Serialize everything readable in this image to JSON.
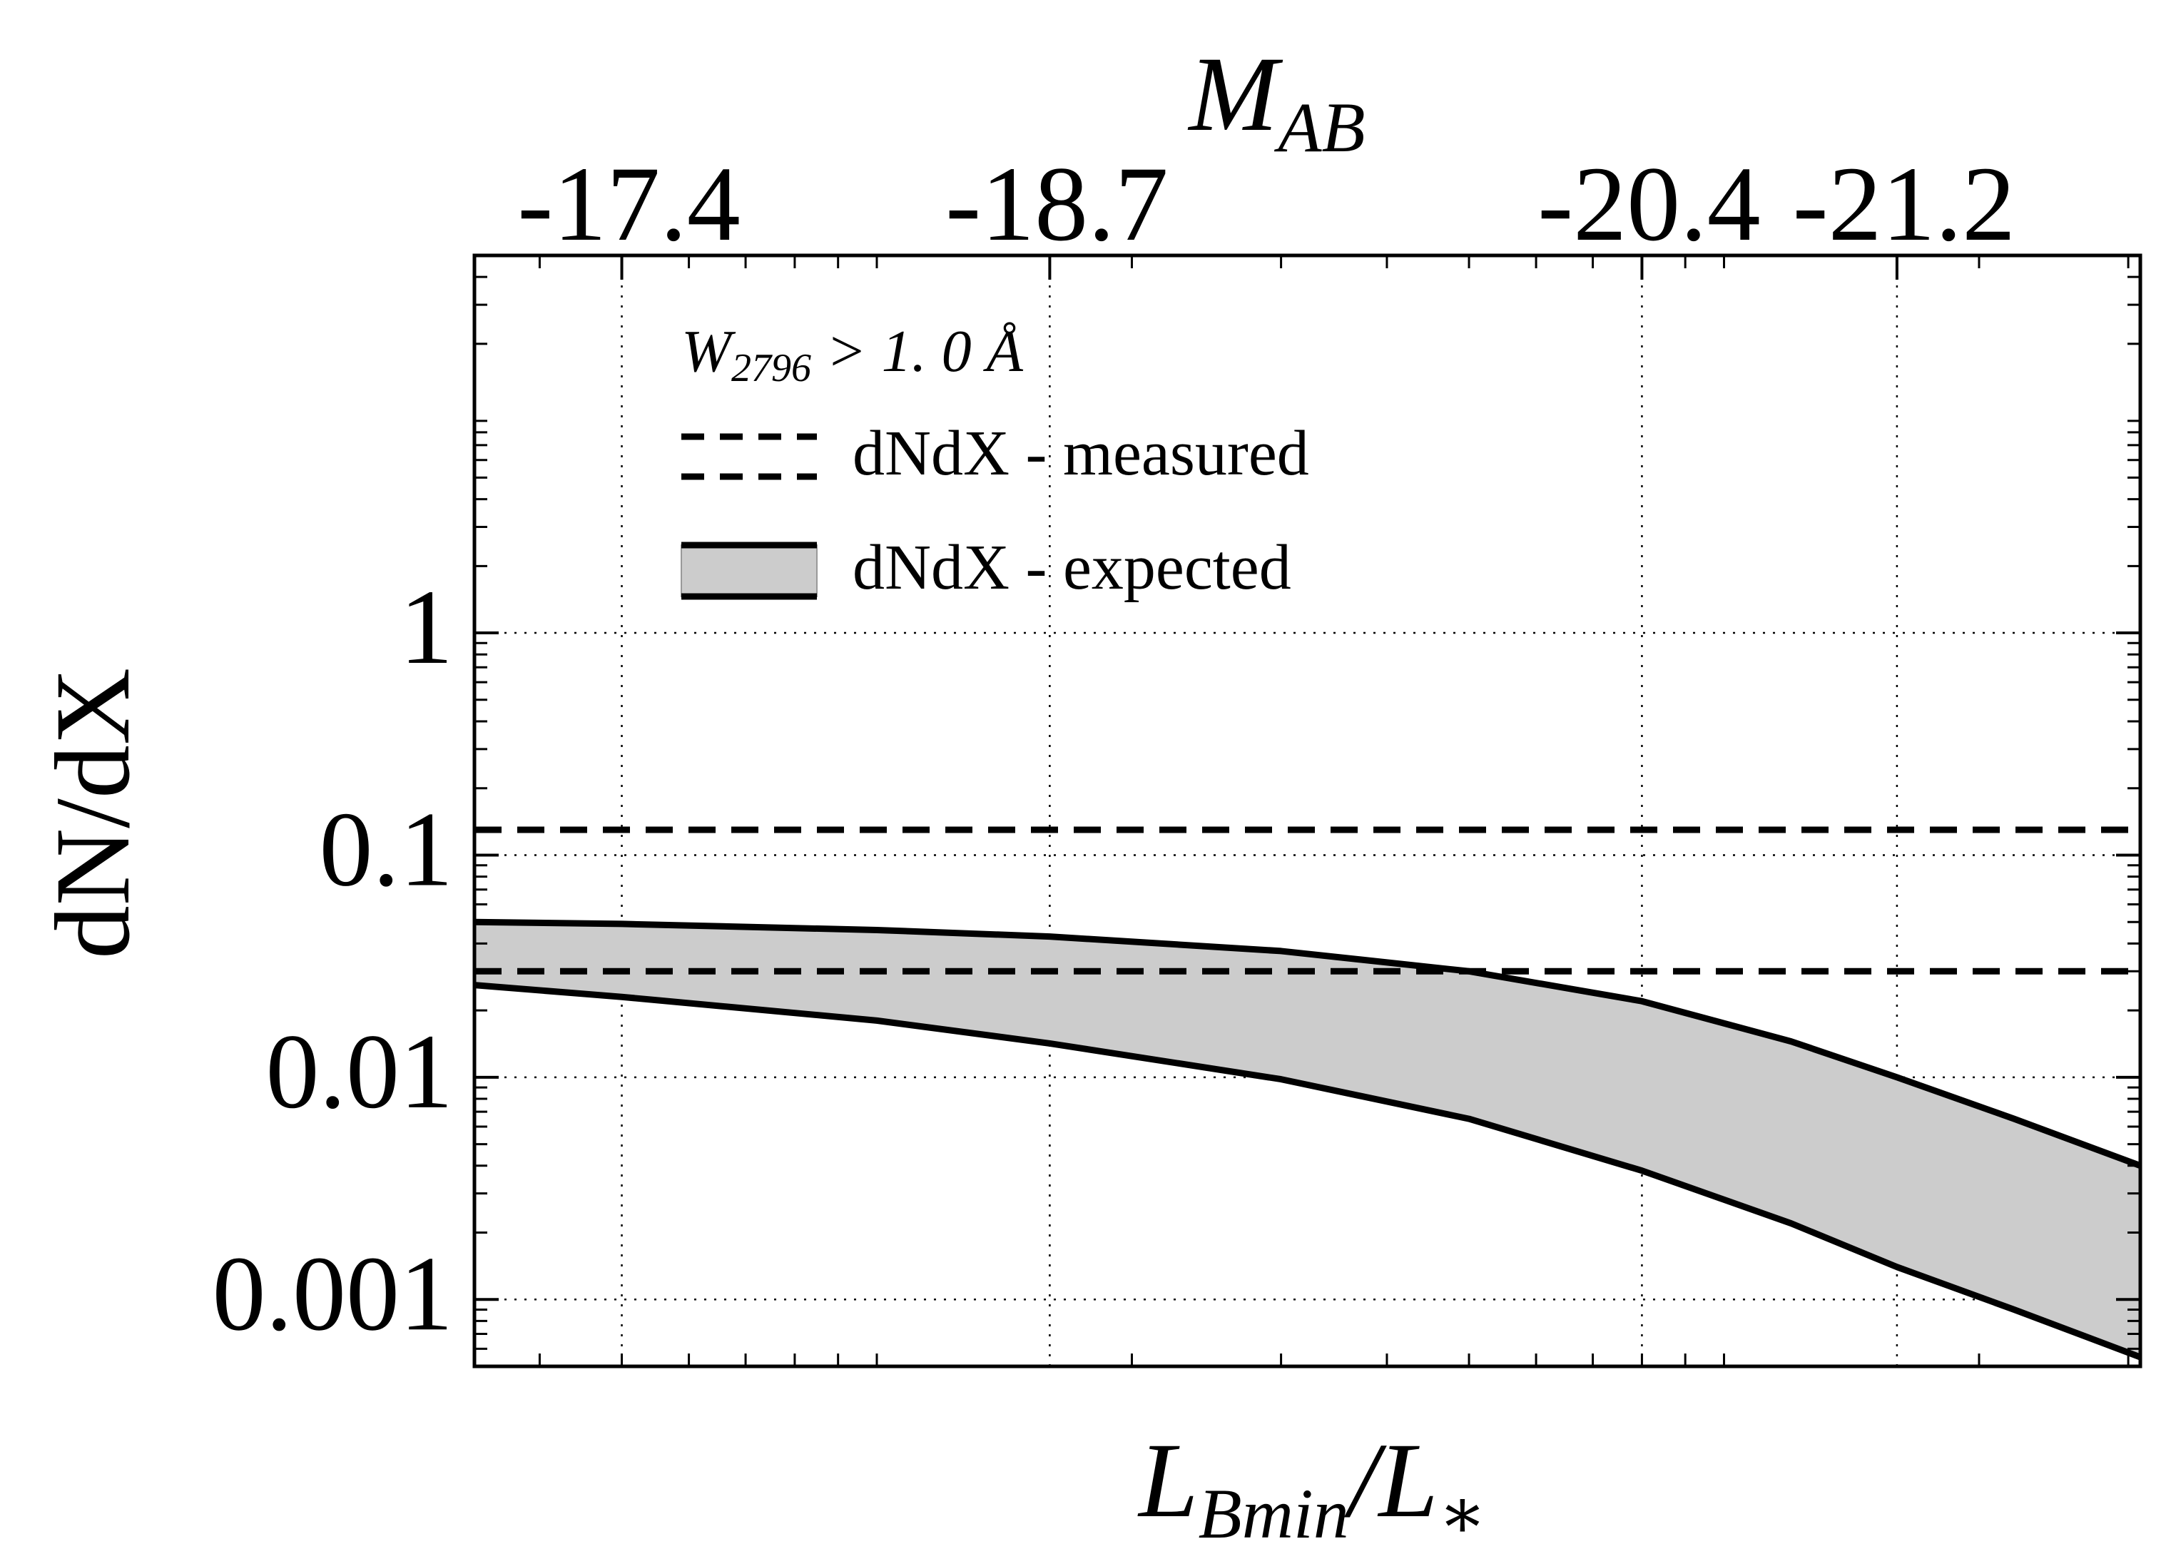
{
  "chart_data": {
    "type": "area",
    "xlabel": "L_Bmin/L_*",
    "ylabel": "dN/dX",
    "top_axis": {
      "label": "M_AB",
      "ticks": [
        "-17.4",
        "-18.7",
        "-20.4",
        "-21.2"
      ],
      "tick_positions_lum": [
        0.05,
        0.16,
        0.8,
        1.6
      ]
    },
    "x_scale": "log",
    "y_scale": "log",
    "xlim": [
      0.0335,
      3.1
    ],
    "ylim": [
      0.0005,
      50
    ],
    "y_ticks": [
      0.001,
      0.01,
      0.1,
      1
    ],
    "y_tick_labels": [
      "0.001",
      "0.01",
      "0.1",
      "1"
    ],
    "grid": true,
    "legend": {
      "title": "W_2796 > 1.0 Å",
      "placement": "top-left",
      "entries": [
        "dNdX - measured",
        "dNdX - expected"
      ]
    },
    "measured_lines": [
      0.13,
      0.03
    ],
    "expected_band": {
      "x": [
        0.0335,
        0.05,
        0.1,
        0.16,
        0.3,
        0.5,
        0.8,
        1.2,
        1.6,
        2.2,
        3.1
      ],
      "upper": [
        0.05,
        0.049,
        0.046,
        0.043,
        0.037,
        0.03,
        0.022,
        0.0145,
        0.01,
        0.0065,
        0.004
      ],
      "lower": [
        0.026,
        0.023,
        0.018,
        0.0142,
        0.0098,
        0.0065,
        0.0038,
        0.0022,
        0.0014,
        0.0009,
        0.00055
      ]
    },
    "colors": {
      "line": "#000000",
      "band_fill": "#cccccc",
      "grid": "#000000"
    }
  }
}
